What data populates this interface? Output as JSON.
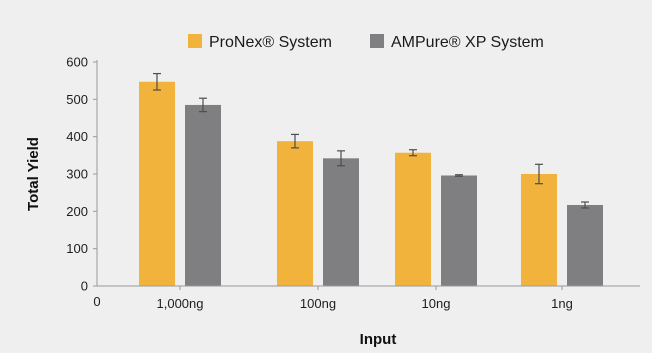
{
  "chart_data": {
    "type": "bar",
    "title": "",
    "xlabel": "Input",
    "ylabel": "Total Yield",
    "categories": [
      "1,000ng",
      "100ng",
      "10ng",
      "1ng"
    ],
    "x_origin_label": "0",
    "ylim": [
      0,
      600
    ],
    "yticks": [
      0,
      100,
      200,
      300,
      400,
      500,
      600
    ],
    "grid": false,
    "legend_position": "top",
    "series": [
      {
        "name": "ProNex® System",
        "color": "#f2b33d",
        "values": [
          547,
          388,
          357,
          300
        ],
        "error": [
          22,
          18,
          8,
          26
        ]
      },
      {
        "name": "AMPure® XP System",
        "color": "#7f7f81",
        "values": [
          485,
          342,
          296,
          217
        ],
        "error": [
          18,
          20,
          2,
          8
        ]
      }
    ],
    "background": "#efefef",
    "error_bar_color": "#4d4d4d"
  }
}
